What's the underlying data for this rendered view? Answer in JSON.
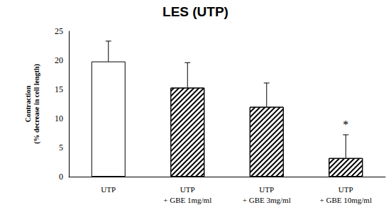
{
  "chart_data": {
    "type": "bar",
    "title": "LES (UTP)",
    "ylabel": "Contraction\n(% decrease in cell length)",
    "categories": [
      "UTP",
      "UTP\n+ GBE 1mg/ml",
      "UTP\n+ GBE 3mg/ml",
      "UTP\n+ GBE 10mg/ml"
    ],
    "values": [
      19.8,
      15.3,
      12.0,
      3.2
    ],
    "errors": [
      3.5,
      4.3,
      4.1,
      4.0
    ],
    "colors": [
      "#ffffff",
      "#ffffff",
      "#ffffff",
      "#ffffff"
    ],
    "annotations": [
      {
        "x": "UTP\n+ GBE 10mg/ml",
        "text": "*"
      }
    ],
    "ylim": [
      0,
      25
    ],
    "yticks": [
      0,
      5,
      10,
      15,
      20,
      25
    ],
    "grid": false
  }
}
